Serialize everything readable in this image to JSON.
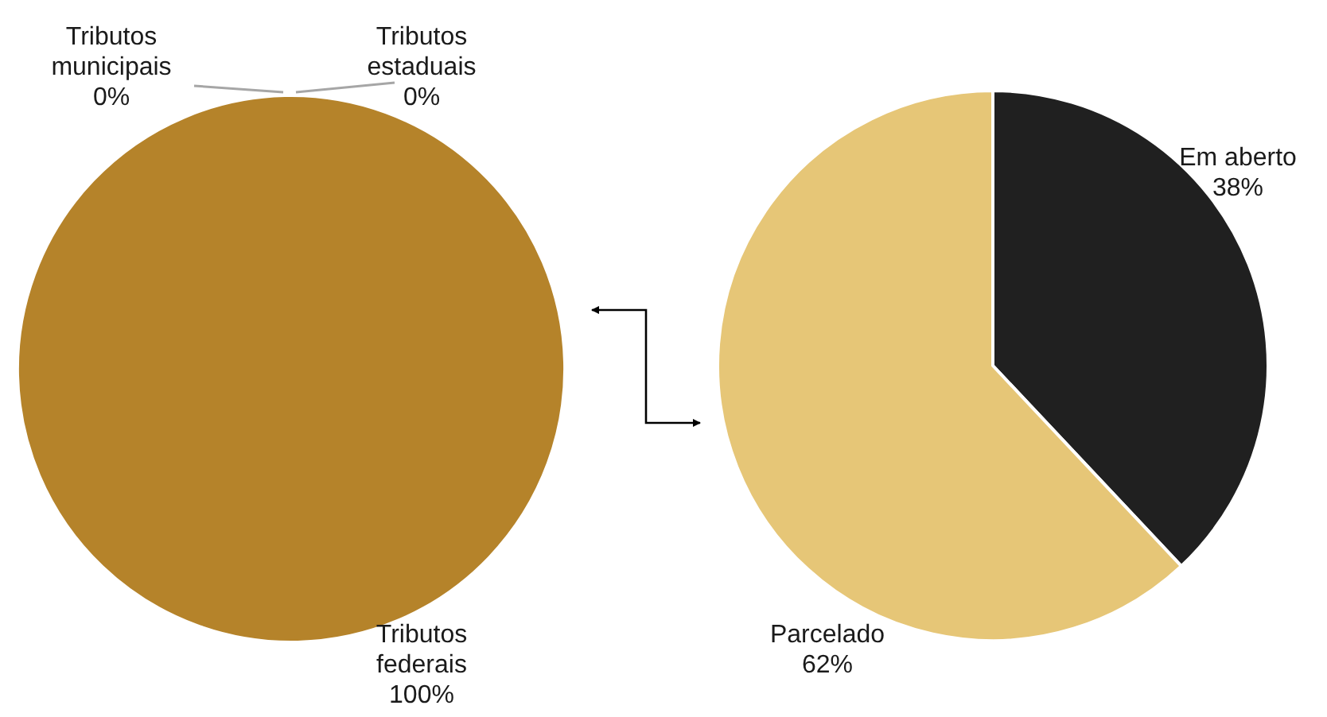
{
  "chart_data": [
    {
      "type": "pie",
      "categories": [
        "Tributos municipais",
        "Tributos estaduais",
        "Tributos federais"
      ],
      "values": [
        0,
        0,
        100
      ],
      "value_labels": [
        "0%",
        "0%",
        "100%"
      ],
      "colors": [
        "#b5832a",
        "#b5832a",
        "#b5832a"
      ]
    },
    {
      "type": "pie",
      "categories": [
        "Em aberto",
        "Parcelado"
      ],
      "values": [
        38,
        62
      ],
      "value_labels": [
        "38%",
        "62%"
      ],
      "colors": [
        "#202020",
        "#e6c677"
      ]
    }
  ]
}
